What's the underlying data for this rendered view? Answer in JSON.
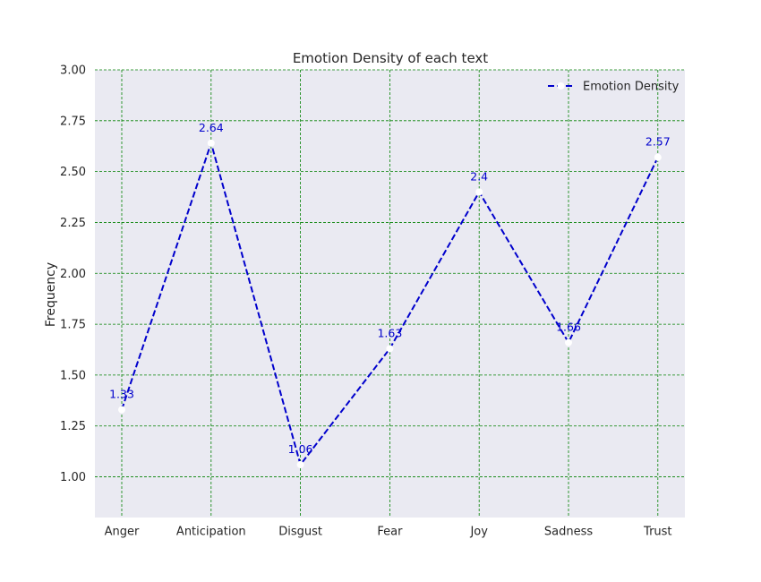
{
  "chart_data": {
    "type": "line",
    "title": "Emotion Density of each text",
    "xlabel": "",
    "ylabel": "Frequency",
    "categories": [
      "Anger",
      "Anticipation",
      "Disgust",
      "Fear",
      "Joy",
      "Sadness",
      "Trust"
    ],
    "series": [
      {
        "name": "Emotion Density",
        "values": [
          1.33,
          2.64,
          1.06,
          1.63,
          2.4,
          1.66,
          2.57
        ],
        "labels": [
          "1.33",
          "2.64",
          "1.06",
          "1.63",
          "2.4",
          "1.66",
          "2.57"
        ],
        "color": "#0000cc",
        "marker_color": "#ffffff",
        "line_style": "dashed"
      }
    ],
    "ylim": [
      0.8,
      3.0
    ],
    "yticks": [
      1.0,
      1.25,
      1.5,
      1.75,
      2.0,
      2.25,
      2.5,
      2.75,
      3.0
    ],
    "ytick_labels": [
      "1.00",
      "1.25",
      "1.50",
      "1.75",
      "2.00",
      "2.25",
      "2.50",
      "2.75",
      "3.00"
    ],
    "grid": true,
    "grid_color": "#008000",
    "background_color": "#eaeaf2",
    "legend_position": "top-right"
  }
}
